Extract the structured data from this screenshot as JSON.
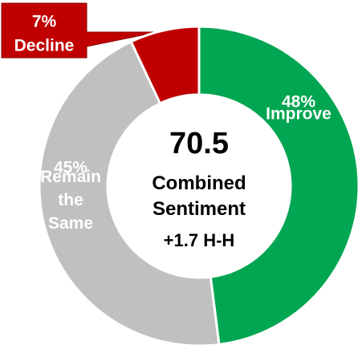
{
  "chart_data": {
    "type": "donut",
    "categories": [
      "Improve",
      "Remain the Same",
      "Decline"
    ],
    "values": [
      48,
      45,
      7
    ],
    "value_labels": [
      "48%",
      "45%",
      "7%"
    ],
    "colors": [
      "#00a651",
      "#c0c0c0",
      "#c00000"
    ],
    "center_value": "70.5",
    "center_label": "Combined Sentiment",
    "center_change": "+1.7 H-H"
  }
}
